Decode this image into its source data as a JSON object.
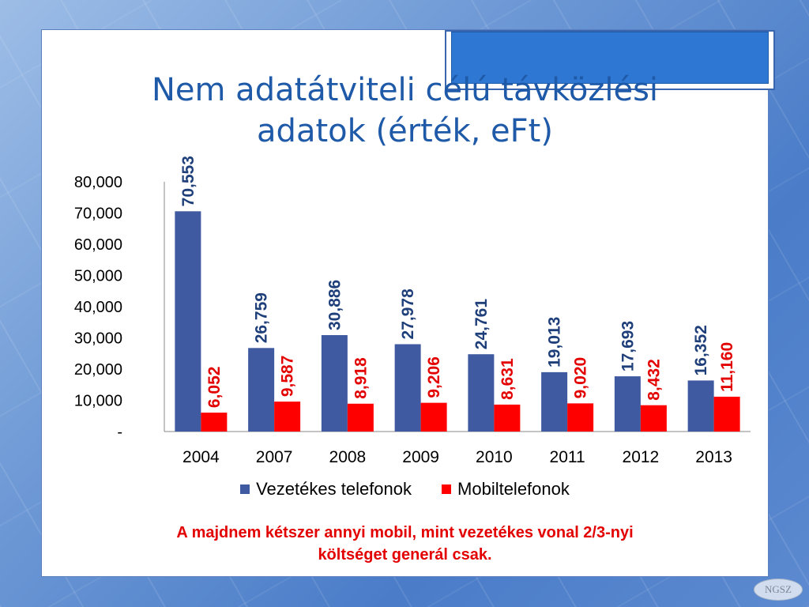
{
  "title_line1": "Nem adatátviteli célú távközlési",
  "title_line2": "adatok (érték, eFt)",
  "note_line1": "A majdnem kétszer annyi mobil, mint vezetékes vonal  2/3-nyi",
  "note_line2": "költséget generál csak.",
  "logo_text": "NGSZ",
  "colors": {
    "title": "#1f5aa8",
    "series_blue": "#3f5aa0",
    "series_red": "#ff0000",
    "label_blue": "#1f3f7a",
    "label_red": "#e30000",
    "note": "#e30000"
  },
  "chart_data": {
    "type": "bar",
    "categories": [
      "2004",
      "2007",
      "2008",
      "2009",
      "2010",
      "2011",
      "2012",
      "2013"
    ],
    "series": [
      {
        "name": "Vezetékes telefonok",
        "values": [
          70553,
          26759,
          30886,
          27978,
          24761,
          19013,
          17693,
          16352
        ],
        "labels": [
          "70,553",
          "26,759",
          "30,886",
          "27,978",
          "24,761",
          "19,013",
          "17,693",
          "16,352"
        ]
      },
      {
        "name": "Mobiltelefonok",
        "values": [
          6052,
          9587,
          8918,
          9206,
          8631,
          9020,
          8432,
          11160
        ],
        "labels": [
          "6,052",
          "9,587",
          "8,918",
          "9,206",
          "8,631",
          "9,020",
          "8,432",
          "11,160"
        ]
      }
    ],
    "y_ticks": [
      0,
      10000,
      20000,
      30000,
      40000,
      50000,
      60000,
      70000,
      80000
    ],
    "y_tick_labels": [
      "-",
      "10,000",
      "20,000",
      "30,000",
      "40,000",
      "50,000",
      "60,000",
      "70,000",
      "80,000"
    ],
    "ylim": [
      0,
      80000
    ],
    "legend_position": "bottom",
    "grid": false
  }
}
